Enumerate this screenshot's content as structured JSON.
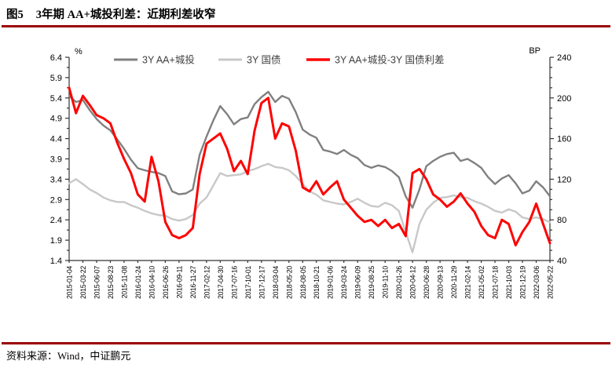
{
  "header": {
    "figure_label": "图5",
    "title": "3年期 AA+城投利差：近期利差收窄"
  },
  "footer": {
    "source": "资料来源：Wind，中证鹏元"
  },
  "colors": {
    "accent_rule": "#990000",
    "axis": "#333333",
    "text": "#000000",
    "legend_text": "#404040",
    "series_chengtou": "#808080",
    "series_guozhai": "#c8c8c8",
    "series_spread": "#ff0000"
  },
  "chart_data": {
    "type": "line",
    "title": "3年期 AA+城投利差：近期利差收窄",
    "legend_position": "top",
    "grid": false,
    "points_per_label_interval": 2,
    "left_axis": {
      "unit": "%",
      "min": 1.4,
      "max": 6.4,
      "tick_step": 0.5,
      "minor_step": 0.25,
      "ticks": [
        6.4,
        5.9,
        5.4,
        4.9,
        4.4,
        3.9,
        3.4,
        2.9,
        2.4,
        1.9,
        1.4
      ]
    },
    "right_axis": {
      "unit": "BP",
      "min": 40,
      "max": 240,
      "tick_step": 40,
      "minor_step": 10,
      "ticks": [
        240,
        200,
        160,
        120,
        80,
        40
      ]
    },
    "x_labels": [
      "2015-01-04",
      "2015-03-22",
      "2015-06-07",
      "2015-08-23",
      "2015-11-08",
      "2016-01-24",
      "2016-04-10",
      "2016-06-26",
      "2016-09-11",
      "2016-11-27",
      "2017-02-12",
      "2017-04-30",
      "2017-07-16",
      "2017-10-01",
      "2017-12-17",
      "2018-03-04",
      "2018-05-20",
      "2018-08-05",
      "2018-10-21",
      "2019-01-06",
      "2019-03-24",
      "2019-06-09",
      "2019-08-25",
      "2019-11-10",
      "2020-01-26",
      "2020-04-12",
      "2020-06-28",
      "2020-09-13",
      "2020-11-29",
      "2021-02-14",
      "2021-05-02",
      "2021-07-18",
      "2021-10-03",
      "2021-12-19",
      "2022-03-06",
      "2022-05-22"
    ],
    "series": [
      {
        "id": "series-aa-chengtou",
        "name": "3Y AA+城投",
        "axis": "left",
        "unit": "%",
        "color": "#808080",
        "width": 2.4,
        "values": [
          5.45,
          5.3,
          5.35,
          5.1,
          4.88,
          4.72,
          4.6,
          4.38,
          4.15,
          3.88,
          3.67,
          3.62,
          3.58,
          3.55,
          3.48,
          3.1,
          3.03,
          3.05,
          3.15,
          4.0,
          4.45,
          4.85,
          5.2,
          5.0,
          4.75,
          4.88,
          4.92,
          5.25,
          5.42,
          5.55,
          5.3,
          5.45,
          5.38,
          5.05,
          4.62,
          4.5,
          4.42,
          4.12,
          4.08,
          4.02,
          4.12,
          4.0,
          3.92,
          3.75,
          3.68,
          3.74,
          3.7,
          3.6,
          3.45,
          2.98,
          2.7,
          3.15,
          3.72,
          3.85,
          3.95,
          4.02,
          4.05,
          3.85,
          3.9,
          3.8,
          3.68,
          3.45,
          3.28,
          3.42,
          3.5,
          3.3,
          3.05,
          3.12,
          3.35,
          3.2,
          2.98
        ]
      },
      {
        "id": "series-guozhai",
        "name": "3Y 国债",
        "axis": "left",
        "unit": "%",
        "color": "#c8c8c8",
        "width": 2.4,
        "values": [
          3.3,
          3.4,
          3.28,
          3.15,
          3.06,
          2.95,
          2.88,
          2.84,
          2.84,
          2.76,
          2.7,
          2.62,
          2.56,
          2.52,
          2.5,
          2.42,
          2.38,
          2.42,
          2.52,
          2.8,
          2.95,
          3.25,
          3.55,
          3.48,
          3.5,
          3.52,
          3.6,
          3.65,
          3.72,
          3.78,
          3.7,
          3.68,
          3.62,
          3.48,
          3.28,
          3.1,
          3.02,
          2.88,
          2.84,
          2.8,
          2.78,
          2.84,
          2.92,
          2.82,
          2.74,
          2.72,
          2.82,
          2.76,
          2.62,
          2.1,
          1.6,
          2.3,
          2.65,
          2.82,
          2.94,
          2.96,
          3.0,
          2.96,
          2.94,
          2.86,
          2.8,
          2.72,
          2.62,
          2.58,
          2.66,
          2.6,
          2.46,
          2.42,
          2.46,
          2.42,
          2.34
        ]
      },
      {
        "id": "series-spread",
        "name": "3Y AA+城投-3Y 国债利差",
        "axis": "right",
        "unit": "BP",
        "color": "#ff0000",
        "width": 3,
        "values": [
          210,
          185,
          202,
          193,
          183,
          180,
          175,
          156,
          140,
          126,
          105,
          98,
          142,
          118,
          78,
          65,
          62,
          65,
          72,
          125,
          155,
          160,
          165,
          150,
          128,
          138,
          125,
          168,
          195,
          200,
          160,
          175,
          172,
          148,
          112,
          108,
          118,
          105,
          112,
          118,
          100,
          92,
          84,
          78,
          80,
          74,
          80,
          72,
          76,
          64,
          126,
          130,
          120,
          105,
          100,
          93,
          98,
          106,
          96,
          88,
          74,
          65,
          62,
          80,
          76,
          55,
          68,
          78,
          96,
          76,
          57
        ]
      }
    ]
  }
}
